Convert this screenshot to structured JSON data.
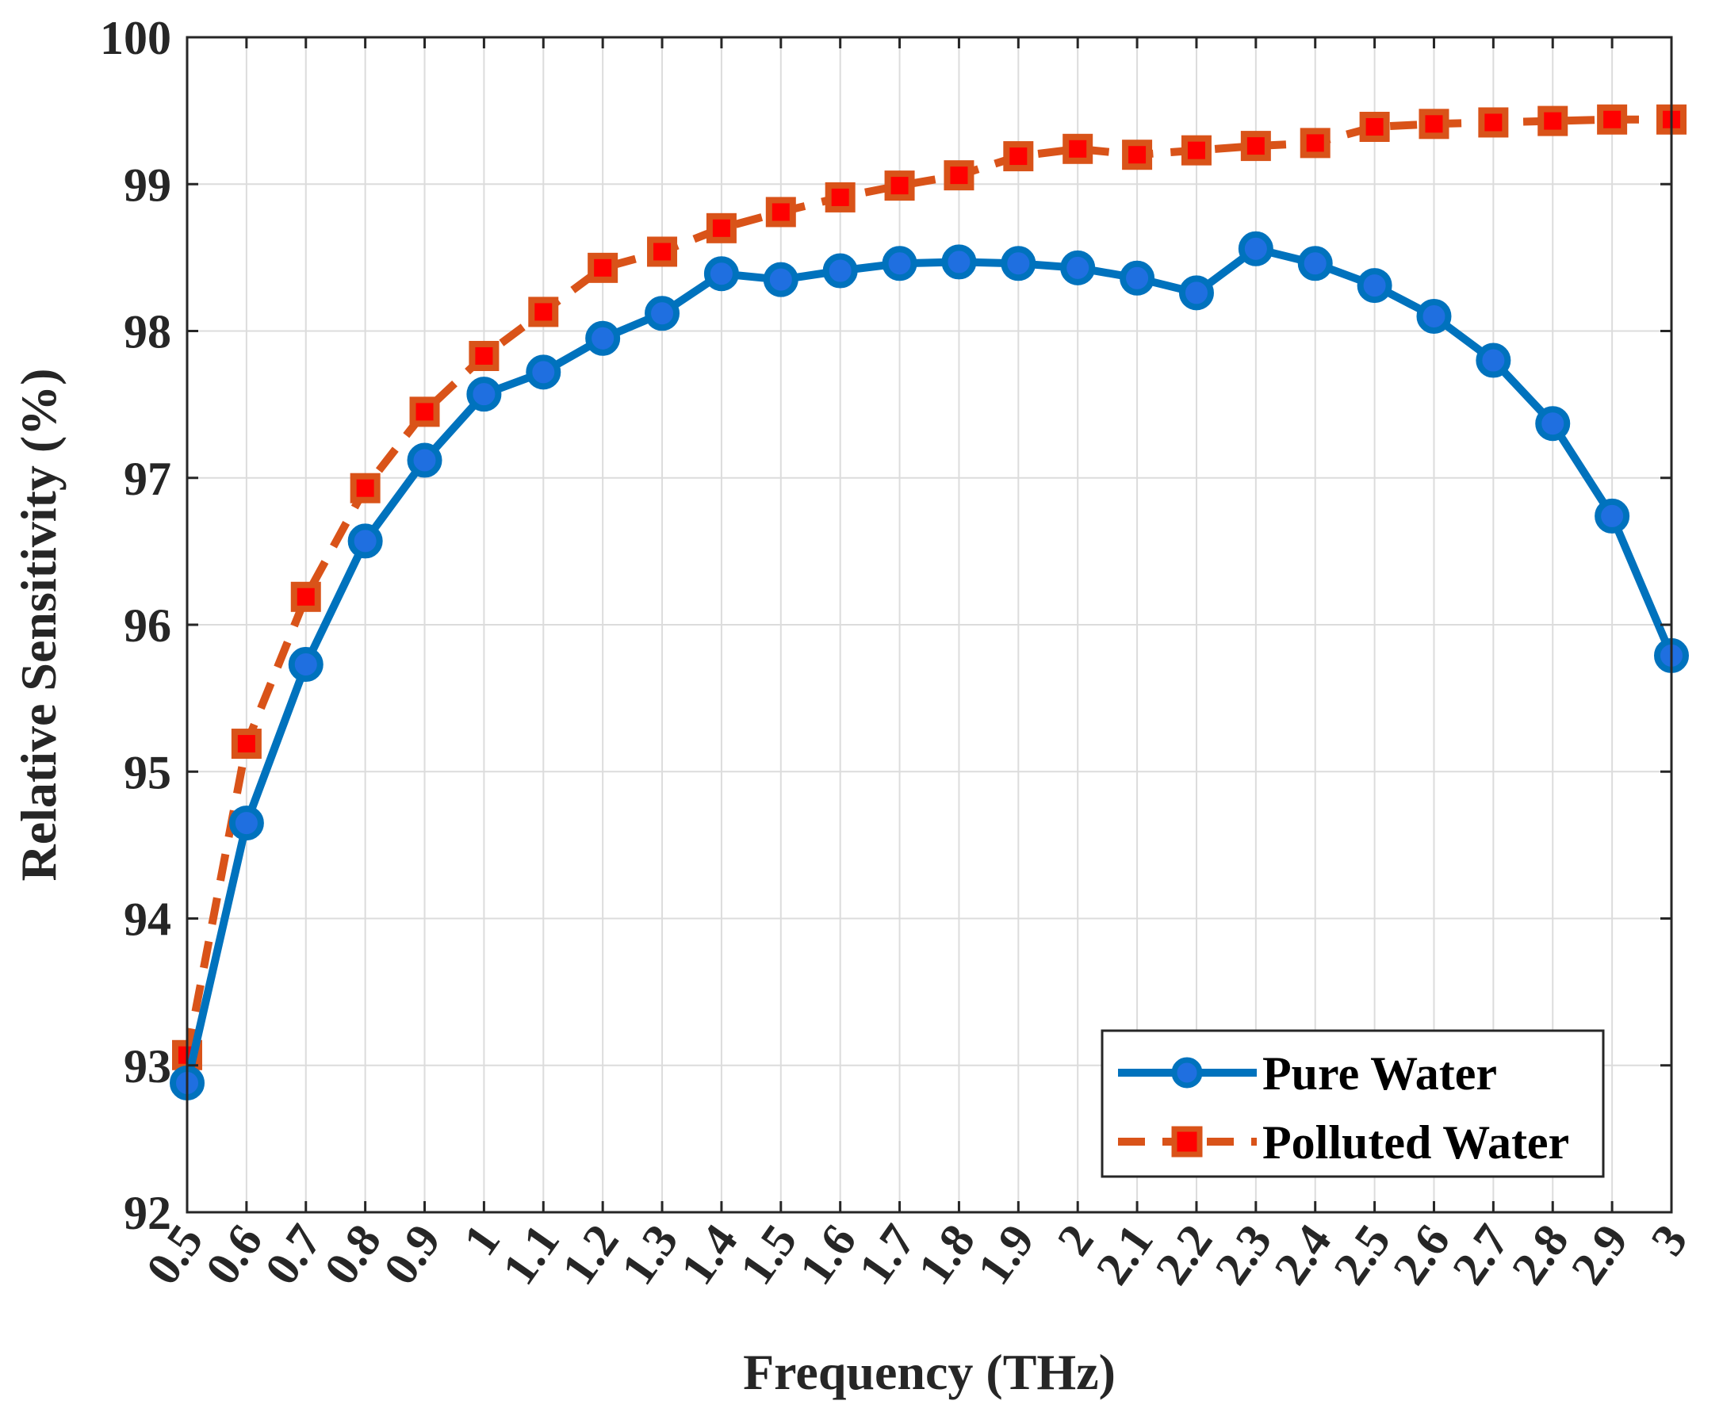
{
  "chart_data": {
    "type": "line",
    "title": "",
    "xlabel": "Frequency (THz)",
    "ylabel": "Relative Sensitivity (%)",
    "xlim": [
      0.5,
      3.0
    ],
    "ylim": [
      92,
      100
    ],
    "grid": true,
    "legend_position": "bottom-right",
    "x": [
      0.5,
      0.6,
      0.7,
      0.8,
      0.9,
      1.0,
      1.1,
      1.2,
      1.3,
      1.4,
      1.5,
      1.6,
      1.7,
      1.8,
      1.9,
      2.0,
      2.1,
      2.2,
      2.3,
      2.4,
      2.5,
      2.6,
      2.7,
      2.8,
      2.9,
      3.0
    ],
    "x_tick_labels": [
      "0.5",
      "0.6",
      "0.7",
      "0.8",
      "0.9",
      "1",
      "1.1",
      "1.2",
      "1.3",
      "1.4",
      "1.5",
      "1.6",
      "1.7",
      "1.8",
      "1.9",
      "2",
      "2.1",
      "2.2",
      "2.3",
      "2.4",
      "2.5",
      "2.6",
      "2.7",
      "2.8",
      "2.9",
      "3"
    ],
    "y_ticks": [
      92,
      93,
      94,
      95,
      96,
      97,
      98,
      99,
      100
    ],
    "y_tick_labels": [
      "92",
      "93",
      "94",
      "95",
      "96",
      "97",
      "98",
      "99",
      "100"
    ],
    "series": [
      {
        "name": "Pure Water",
        "color": "#0072BD",
        "marker_fill": "#1f6fe0",
        "line_style": "solid",
        "marker": "circle",
        "values": [
          92.88,
          94.65,
          95.73,
          96.57,
          97.12,
          97.57,
          97.72,
          97.95,
          98.12,
          98.39,
          98.35,
          98.41,
          98.46,
          98.47,
          98.46,
          98.43,
          98.36,
          98.26,
          98.56,
          98.46,
          98.31,
          98.1,
          97.8,
          97.37,
          96.74,
          95.79
        ]
      },
      {
        "name": "Polluted Water",
        "color": "#D95319",
        "marker_fill": "#ff0000",
        "line_style": "dashed",
        "marker": "square",
        "values": [
          93.07,
          95.19,
          96.19,
          96.93,
          97.45,
          97.83,
          98.13,
          98.43,
          98.54,
          98.7,
          98.81,
          98.91,
          98.99,
          99.06,
          99.19,
          99.24,
          99.2,
          99.23,
          99.26,
          99.28,
          99.39,
          99.41,
          99.42,
          99.43,
          99.44,
          99.44
        ]
      }
    ]
  }
}
